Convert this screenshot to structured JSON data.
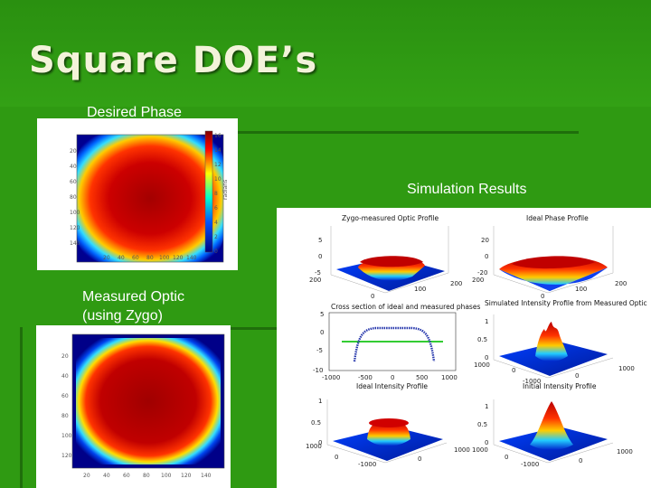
{
  "slide": {
    "title": "Square DOE’s",
    "label_desired": "Desired Phase",
    "label_simulation": "Simulation Results",
    "label_measured": "Measured Optic\n(using Zygo)"
  },
  "panels": {
    "desired": {
      "ticks_x": [
        "20",
        "40",
        "60",
        "80",
        "100",
        "120",
        "140"
      ],
      "ticks_y": [
        "20",
        "40",
        "60",
        "80",
        "100",
        "120",
        "140"
      ],
      "colorbar_ticks": [
        "16",
        "14",
        "12",
        "10",
        "8",
        "6",
        "4",
        "2",
        "0"
      ],
      "colorbar_label": "radians"
    },
    "measured": {
      "ticks_x": [
        "20",
        "40",
        "60",
        "80",
        "100",
        "120",
        "140"
      ],
      "ticks_y": [
        "20",
        "40",
        "60",
        "80",
        "100",
        "120"
      ]
    },
    "simulation": {
      "plot_titles": [
        "Zygo-measured Optic Profile",
        "Ideal Phase Profile",
        "Cross section of ideal and measured phases",
        "Simulated Intensity Profile from Measured Optic",
        "Ideal Intensity Profile",
        "Initial Intensity Profile"
      ],
      "zygo_z_ticks": [
        "5",
        "0",
        "-5"
      ],
      "zygo_base_ticks": [
        "200",
        "0",
        "100",
        "200"
      ],
      "ideal_z_ticks": [
        "20",
        "0",
        "-20"
      ],
      "ideal_base_ticks": [
        "200",
        "0",
        "100",
        "200"
      ],
      "cross_y_ticks": [
        "5",
        "0",
        "-5",
        "-10"
      ],
      "cross_x_ticks": [
        "-1000",
        "-500",
        "0",
        "500",
        "1000"
      ],
      "sim_z_ticks": [
        "1",
        "0.5",
        "0"
      ],
      "sim_base_ticks": [
        "1000",
        "0",
        "-1000",
        "0",
        "1000"
      ],
      "idealI_z_ticks": [
        "1",
        "0.5",
        "0"
      ],
      "idealI_base_ticks": [
        "1000",
        "0",
        "-1000",
        "0",
        "1000"
      ],
      "initI_z_ticks": [
        "1",
        "0.5",
        "0"
      ],
      "initI_base_ticks": [
        "1000",
        "0",
        "-1000",
        "0",
        "1000"
      ]
    }
  },
  "colors": {
    "background": "#2f9a12",
    "title_text": "#f3f3da",
    "rules": "#1f6e0b",
    "label_text": "#ffffff"
  }
}
